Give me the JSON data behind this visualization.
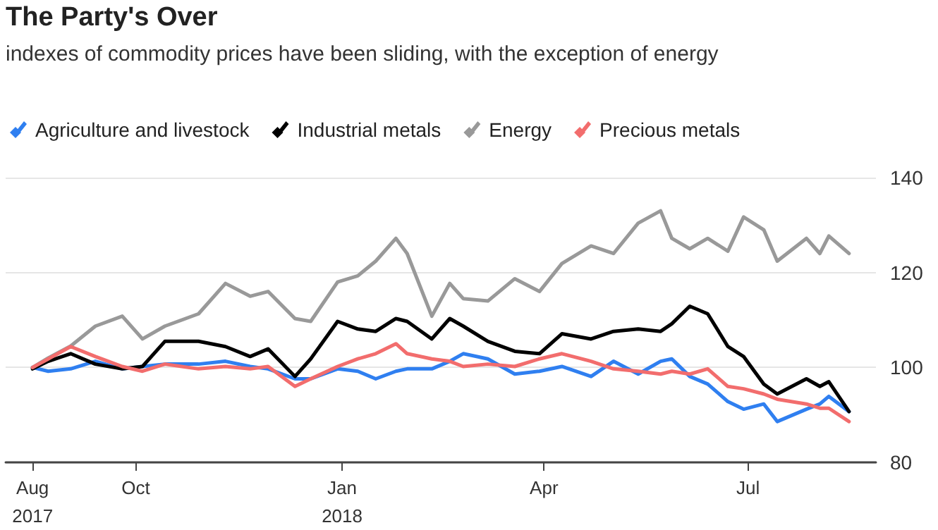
{
  "chart_data": {
    "type": "line",
    "title": "The Party's Over",
    "subtitle": "indexes of commodity prices have been sliding, with the exception of energy",
    "x": [
      "2017-08-16",
      "2017-08-23",
      "2017-09-02",
      "2017-09-13",
      "2017-09-25",
      "2017-10-04",
      "2017-10-14",
      "2017-10-29",
      "2017-11-10",
      "2017-11-21",
      "2017-11-29",
      "2017-12-11",
      "2017-12-18",
      "2017-12-30",
      "2018-01-08",
      "2018-01-16",
      "2018-01-25",
      "2018-01-30",
      "2018-02-10",
      "2018-02-18",
      "2018-02-24",
      "2018-03-07",
      "2018-03-19",
      "2018-03-30",
      "2018-04-09",
      "2018-04-22",
      "2018-05-02",
      "2018-05-13",
      "2018-05-23",
      "2018-05-28",
      "2018-06-05",
      "2018-06-13",
      "2018-06-22",
      "2018-06-29",
      "2018-07-08",
      "2018-07-14",
      "2018-07-27",
      "2018-08-02",
      "2018-08-06",
      "2018-08-15"
    ],
    "series": [
      {
        "name": "Agriculture and livestock",
        "color": "#2f7ff0",
        "values": [
          100,
          99.2,
          99.7,
          101.3,
          99.7,
          100.2,
          100.7,
          100.7,
          101.3,
          100.2,
          99.7,
          97.6,
          97.6,
          99.7,
          99.2,
          97.6,
          99.2,
          99.7,
          99.7,
          101.3,
          102.9,
          101.8,
          98.6,
          99.2,
          100.2,
          98.1,
          101.3,
          98.6,
          101.3,
          101.8,
          98.1,
          96.5,
          92.8,
          91.2,
          92.3,
          88.6,
          91.2,
          92.3,
          93.9,
          90.7
        ]
      },
      {
        "name": "Industrial metals",
        "color": "#000000",
        "values": [
          99.7,
          101.3,
          102.9,
          100.7,
          99.7,
          100.2,
          105.5,
          105.5,
          104.4,
          102.3,
          103.9,
          98.1,
          101.8,
          109.7,
          108.1,
          107.6,
          110.3,
          109.7,
          106,
          110.3,
          108.7,
          105.5,
          103.4,
          102.9,
          107.1,
          106,
          107.6,
          108.1,
          107.6,
          109.2,
          112.9,
          111.3,
          104.4,
          102.3,
          96.5,
          94.4,
          97.6,
          96,
          97,
          90.7
        ]
      },
      {
        "name": "Energy",
        "color": "#999999",
        "values": [
          100,
          102,
          104.5,
          108.7,
          110.8,
          106,
          108.7,
          111.3,
          117.7,
          115,
          116,
          110.3,
          109.7,
          118,
          119.3,
          122.4,
          127.2,
          124,
          110.8,
          117.7,
          114.5,
          114,
          118.7,
          116,
          121.9,
          125.6,
          124,
          130.4,
          133,
          127.2,
          125,
          127.2,
          124.5,
          131.7,
          129,
          122.4,
          127.2,
          124,
          127.7,
          124
        ]
      },
      {
        "name": "Precious metals",
        "color": "#f26d6d",
        "values": [
          100,
          101.8,
          104.4,
          102.3,
          100.2,
          99.2,
          100.7,
          99.7,
          100.2,
          99.7,
          100.2,
          96,
          97.6,
          100.2,
          101.8,
          102.9,
          105,
          102.9,
          101.8,
          101.3,
          100.2,
          100.7,
          100.2,
          101.8,
          102.9,
          101.3,
          99.7,
          99.2,
          98.6,
          99.2,
          98.6,
          99.7,
          96,
          95.5,
          94.4,
          93.3,
          92.3,
          91.4,
          91.4,
          88.6
        ]
      }
    ],
    "xlim": [
      "2017-08-04",
      "2018-08-27"
    ],
    "xticks": [
      {
        "value": "2017-08-16",
        "label": "Aug 2017"
      },
      {
        "value": "2017-10-01",
        "label": "Oct"
      },
      {
        "value": "2018-01-01",
        "label": "Jan 2018"
      },
      {
        "value": "2018-04-01",
        "label": "Apr"
      },
      {
        "value": "2018-07-01",
        "label": "Jul"
      }
    ],
    "ylim": [
      80,
      140
    ],
    "yticks": [
      80,
      100,
      120,
      140
    ],
    "grid": "y",
    "legend": "top left",
    "marker": "none",
    "line_style": "solid"
  }
}
